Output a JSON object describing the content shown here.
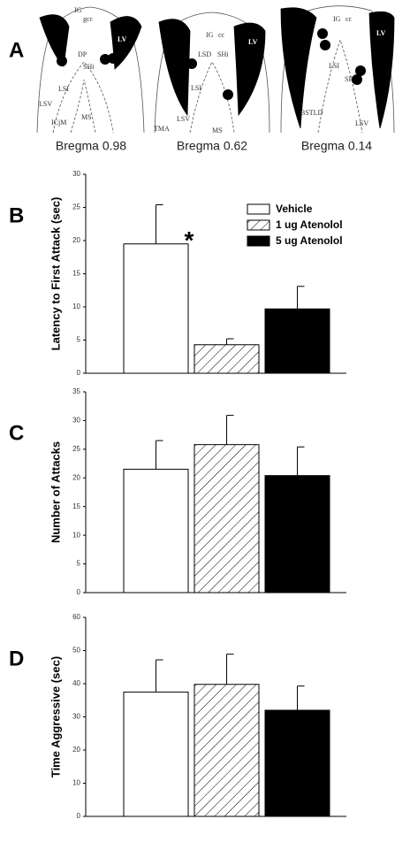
{
  "panel_a": {
    "label": "A",
    "sections": [
      {
        "caption": "Bregma 0.98",
        "regions": [
          "IG",
          "gcc",
          "LV",
          "DP",
          "SHi",
          "LSI",
          "LSV",
          "MS",
          "ICjM"
        ]
      },
      {
        "caption": "Bregma 0.62",
        "regions": [
          "IG",
          "cc",
          "LV",
          "LSD",
          "SHi",
          "LSI",
          "LSV",
          "MS",
          "TMA"
        ]
      },
      {
        "caption": "Bregma 0.14",
        "regions": [
          "IG",
          "cc",
          "LV",
          "LSI",
          "SF",
          "LSV",
          "BSTLD"
        ]
      }
    ]
  },
  "chart_data": [
    {
      "type": "bar",
      "panel": "B",
      "ylabel": "Latency to First Attack (sec)",
      "ylim": [
        0,
        30
      ],
      "yticks": [
        0,
        5,
        10,
        15,
        20,
        25,
        30
      ],
      "legend": "upper right",
      "annotation": "*",
      "series": [
        {
          "name": "Vehicle",
          "color": "#ffffff",
          "hatch": false,
          "values": [
            19.5
          ],
          "errors": [
            5.9
          ]
        },
        {
          "name": "1 ug Atenolol",
          "color": "#ffffff",
          "hatch": true,
          "values": [
            4.3
          ],
          "errors": [
            0.9
          ]
        },
        {
          "name": "5 ug Atenolol",
          "color": "#000000",
          "hatch": false,
          "values": [
            9.7
          ],
          "errors": [
            3.4
          ]
        }
      ]
    },
    {
      "type": "bar",
      "panel": "C",
      "ylabel": "Number of Attacks",
      "ylim": [
        0,
        35
      ],
      "yticks": [
        0,
        5,
        10,
        15,
        20,
        25,
        30,
        35
      ],
      "series": [
        {
          "color": "#ffffff",
          "hatch": false,
          "values": [
            21.5
          ],
          "errors": [
            5.0
          ]
        },
        {
          "color": "#ffffff",
          "hatch": true,
          "values": [
            25.8
          ],
          "errors": [
            5.1
          ]
        },
        {
          "color": "#000000",
          "hatch": false,
          "values": [
            20.4
          ],
          "errors": [
            5.0
          ]
        }
      ]
    },
    {
      "type": "bar",
      "panel": "D",
      "ylabel": "Time Aggressive (sec)",
      "ylim": [
        0,
        60
      ],
      "yticks": [
        0,
        10,
        20,
        30,
        40,
        50,
        60
      ],
      "series": [
        {
          "color": "#ffffff",
          "hatch": false,
          "values": [
            37.5
          ],
          "errors": [
            9.7
          ]
        },
        {
          "color": "#ffffff",
          "hatch": true,
          "values": [
            39.8
          ],
          "errors": [
            9.1
          ]
        },
        {
          "color": "#000000",
          "hatch": false,
          "values": [
            32
          ],
          "errors": [
            7.3
          ]
        }
      ]
    }
  ]
}
